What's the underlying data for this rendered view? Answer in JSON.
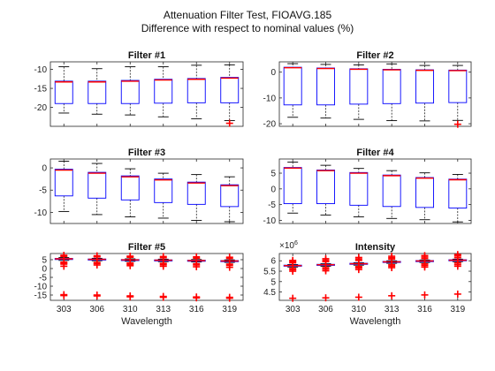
{
  "figure": {
    "title_line1": "Attenuation Filter Test, FIOAVG.185",
    "title_line2": "Difference with respect to nominal values (%)",
    "exponent_label": "×10",
    "exponent_power": "6"
  },
  "chart_data": [
    {
      "type": "box",
      "title": "Filter #1",
      "categories": [
        "303",
        "306",
        "310",
        "313",
        "316",
        "319"
      ],
      "ylim": [
        -25,
        -8
      ],
      "yticks": [
        -10,
        -15,
        -20
      ],
      "show_xticklabels": false,
      "xlabel": "",
      "boxes": [
        {
          "whisker_high": -9.3,
          "q3": -13.1,
          "median": -13.3,
          "q1": -19.0,
          "whisker_low": -21.5,
          "outliers": []
        },
        {
          "whisker_high": -9.8,
          "q3": -13.1,
          "median": -13.3,
          "q1": -19.0,
          "whisker_low": -21.8,
          "outliers": []
        },
        {
          "whisker_high": -9.3,
          "q3": -12.9,
          "median": -13.1,
          "q1": -19.0,
          "whisker_low": -22.0,
          "outliers": []
        },
        {
          "whisker_high": -9.3,
          "q3": -12.6,
          "median": -12.8,
          "q1": -18.9,
          "whisker_low": -22.5,
          "outliers": []
        },
        {
          "whisker_high": -8.9,
          "q3": -12.4,
          "median": -12.6,
          "q1": -18.8,
          "whisker_low": -23.0,
          "outliers": []
        },
        {
          "whisker_high": -8.8,
          "q3": -12.1,
          "median": -12.3,
          "q1": -18.8,
          "whisker_low": -23.5,
          "outliers": [
            -24.2
          ]
        }
      ]
    },
    {
      "type": "box",
      "title": "Filter #2",
      "categories": [
        "303",
        "306",
        "310",
        "313",
        "316",
        "319"
      ],
      "ylim": [
        -21,
        4
      ],
      "yticks": [
        0,
        -10,
        -20
      ],
      "show_xticklabels": false,
      "xlabel": "",
      "boxes": [
        {
          "whisker_high": 3.3,
          "q3": 1.9,
          "median": 1.7,
          "q1": -12.7,
          "whisker_low": -17.5,
          "outliers": []
        },
        {
          "whisker_high": 3.0,
          "q3": 1.6,
          "median": 1.4,
          "q1": -12.7,
          "whisker_low": -17.8,
          "outliers": []
        },
        {
          "whisker_high": 2.8,
          "q3": 1.3,
          "median": 1.1,
          "q1": -12.4,
          "whisker_low": -18.3,
          "outliers": []
        },
        {
          "whisker_high": 3.2,
          "q3": 1.1,
          "median": 0.9,
          "q1": -12.2,
          "whisker_low": -18.8,
          "outliers": []
        },
        {
          "whisker_high": 2.6,
          "q3": 0.9,
          "median": 0.7,
          "q1": -12.0,
          "whisker_low": -18.9,
          "outliers": []
        },
        {
          "whisker_high": 2.6,
          "q3": 0.8,
          "median": 0.6,
          "q1": -11.8,
          "whisker_low": -18.7,
          "outliers": [
            -20.2
          ]
        }
      ]
    },
    {
      "type": "box",
      "title": "Filter #3",
      "categories": [
        "303",
        "306",
        "310",
        "313",
        "316",
        "319"
      ],
      "ylim": [
        -12.5,
        2
      ],
      "yticks": [
        0,
        -5,
        -10
      ],
      "show_xticklabels": false,
      "xlabel": "",
      "boxes": [
        {
          "whisker_high": 1.5,
          "q3": -0.3,
          "median": -0.5,
          "q1": -6.3,
          "whisker_low": -9.8,
          "outliers": []
        },
        {
          "whisker_high": 1.0,
          "q3": -1.0,
          "median": -1.2,
          "q1": -6.8,
          "whisker_low": -10.5,
          "outliers": []
        },
        {
          "whisker_high": -0.2,
          "q3": -1.8,
          "median": -2.0,
          "q1": -7.2,
          "whisker_low": -11.0,
          "outliers": []
        },
        {
          "whisker_high": -1.2,
          "q3": -2.5,
          "median": -2.7,
          "q1": -7.8,
          "whisker_low": -11.3,
          "outliers": []
        },
        {
          "whisker_high": -1.5,
          "q3": -3.2,
          "median": -3.4,
          "q1": -8.2,
          "whisker_low": -11.8,
          "outliers": []
        },
        {
          "whisker_high": -2.0,
          "q3": -3.8,
          "median": -4.0,
          "q1": -8.7,
          "whisker_low": -12.1,
          "outliers": []
        }
      ]
    },
    {
      "type": "box",
      "title": "Filter #4",
      "categories": [
        "303",
        "306",
        "310",
        "313",
        "316",
        "319"
      ],
      "ylim": [
        -11,
        9.5
      ],
      "yticks": [
        5,
        0,
        -5,
        -10
      ],
      "show_xticklabels": false,
      "xlabel": "",
      "boxes": [
        {
          "whisker_high": 8.5,
          "q3": 6.8,
          "median": 6.6,
          "q1": -4.7,
          "whisker_low": -7.7,
          "outliers": []
        },
        {
          "whisker_high": 7.5,
          "q3": 6.0,
          "median": 5.8,
          "q1": -4.7,
          "whisker_low": -8.3,
          "outliers": []
        },
        {
          "whisker_high": 6.5,
          "q3": 5.2,
          "median": 5.0,
          "q1": -5.2,
          "whisker_low": -8.9,
          "outliers": []
        },
        {
          "whisker_high": 5.8,
          "q3": 4.4,
          "median": 4.2,
          "q1": -5.6,
          "whisker_low": -9.4,
          "outliers": []
        },
        {
          "whisker_high": 5.1,
          "q3": 3.6,
          "median": 3.4,
          "q1": -5.9,
          "whisker_low": -9.8,
          "outliers": []
        },
        {
          "whisker_high": 4.6,
          "q3": 3.1,
          "median": 2.9,
          "q1": -6.1,
          "whisker_low": -10.5,
          "outliers": []
        }
      ]
    },
    {
      "type": "box",
      "title": "Filter #5",
      "categories": [
        "303",
        "306",
        "310",
        "313",
        "316",
        "319"
      ],
      "ylim": [
        -18,
        8.5
      ],
      "yticks": [
        5,
        0,
        -5,
        -10,
        -15
      ],
      "show_xticklabels": true,
      "xlabel": "Wavelength",
      "boxes": [
        {
          "whisker_high": 6.2,
          "q3": 5.7,
          "median": 5.5,
          "q1": 5.1,
          "whisker_low": 4.6,
          "outliers": [
            7.5,
            6.9,
            3.6,
            3.0,
            2.5,
            1.3,
            -14.8,
            -15.3
          ]
        },
        {
          "whisker_high": 5.8,
          "q3": 5.4,
          "median": 5.2,
          "q1": 4.8,
          "whisker_low": 4.4,
          "outliers": [
            7.2,
            6.6,
            3.4,
            2.8,
            2.0,
            -15.0,
            -15.5
          ]
        },
        {
          "whisker_high": 5.5,
          "q3": 5.1,
          "median": 4.9,
          "q1": 4.5,
          "whisker_low": 4.1,
          "outliers": [
            7.0,
            6.4,
            3.1,
            2.4,
            1.6,
            -15.5,
            -16.0
          ]
        },
        {
          "whisker_high": 5.3,
          "q3": 4.9,
          "median": 4.7,
          "q1": 4.3,
          "whisker_low": 3.9,
          "outliers": [
            6.8,
            6.1,
            2.9,
            2.2,
            1.3,
            -15.8,
            -16.3
          ]
        },
        {
          "whisker_high": 5.1,
          "q3": 4.7,
          "median": 4.5,
          "q1": 4.1,
          "whisker_low": 3.7,
          "outliers": [
            6.6,
            5.9,
            2.7,
            2.0,
            1.0,
            -16.1,
            -16.6
          ]
        },
        {
          "whisker_high": 4.9,
          "q3": 4.5,
          "median": 4.3,
          "q1": 3.9,
          "whisker_low": 3.5,
          "outliers": [
            6.4,
            5.7,
            2.5,
            1.8,
            0.7,
            -16.3,
            -16.8
          ]
        }
      ]
    },
    {
      "type": "box",
      "title": "Intensity",
      "categories": [
        "303",
        "306",
        "310",
        "313",
        "316",
        "319"
      ],
      "ylim": [
        4.1,
        6.35
      ],
      "yticks": [
        6,
        5.5,
        5,
        4.5
      ],
      "show_xticklabels": true,
      "xlabel": "Wavelength",
      "exponent": 6,
      "boxes": [
        {
          "whisker_high": 5.82,
          "q3": 5.79,
          "median": 5.77,
          "q1": 5.74,
          "whisker_low": 5.7,
          "outliers": [
            6.02,
            5.96,
            5.9,
            5.63,
            5.57,
            5.5,
            4.2
          ]
        },
        {
          "whisker_high": 5.86,
          "q3": 5.83,
          "median": 5.81,
          "q1": 5.78,
          "whisker_low": 5.74,
          "outliers": [
            6.1,
            6.03,
            5.96,
            5.67,
            5.6,
            5.52,
            4.22
          ]
        },
        {
          "whisker_high": 5.91,
          "q3": 5.88,
          "median": 5.86,
          "q1": 5.83,
          "whisker_low": 5.79,
          "outliers": [
            6.16,
            6.09,
            6.02,
            5.72,
            5.66,
            5.58,
            4.25
          ]
        },
        {
          "whisker_high": 6.0,
          "q3": 5.97,
          "median": 5.95,
          "q1": 5.92,
          "whisker_low": 5.88,
          "outliers": [
            6.22,
            6.15,
            6.08,
            5.81,
            5.74,
            5.67,
            4.32
          ]
        },
        {
          "whisker_high": 6.04,
          "q3": 6.01,
          "median": 5.99,
          "q1": 5.96,
          "whisker_low": 5.92,
          "outliers": [
            6.25,
            6.18,
            6.11,
            5.85,
            5.78,
            5.7,
            4.36
          ]
        },
        {
          "whisker_high": 6.08,
          "q3": 6.05,
          "median": 6.03,
          "q1": 6.0,
          "whisker_low": 5.96,
          "outliers": [
            6.3,
            6.23,
            6.15,
            5.9,
            5.82,
            5.74,
            4.4
          ]
        }
      ]
    }
  ],
  "colors": {
    "box": "#0000ff",
    "median": "#ff0000",
    "whisker": "#000000",
    "outlier": "#ff0000",
    "axis": "#262626"
  }
}
